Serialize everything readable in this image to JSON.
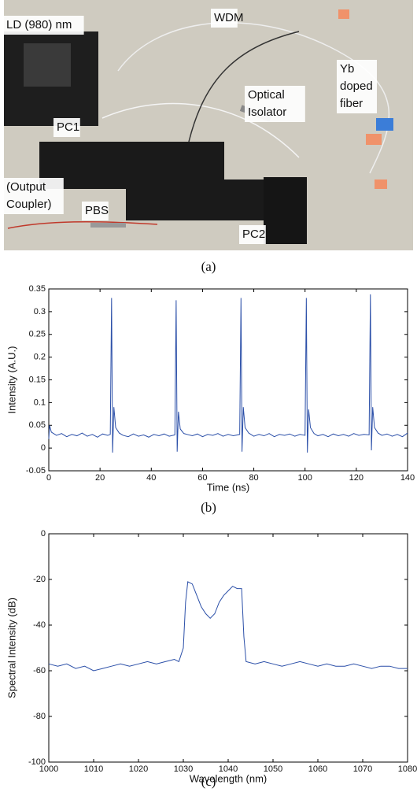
{
  "photo": {
    "labels": [
      {
        "lines": [
          "LD (980) nm"
        ]
      },
      {
        "lines": [
          "WDM"
        ]
      },
      {
        "lines": [
          "Yb",
          "doped",
          "fiber"
        ]
      },
      {
        "lines": [
          "Optical",
          "Isolator"
        ]
      },
      {
        "lines": [
          "PC1"
        ]
      },
      {
        "lines": [
          "(Output",
          "Coupler)"
        ]
      },
      {
        "lines": [
          "PBS"
        ]
      },
      {
        "lines": [
          "PC2"
        ]
      }
    ]
  },
  "captions": [
    "(a)",
    "(b)",
    "(c)"
  ],
  "chart_data": [
    {
      "type": "line",
      "xlabel": "Time (ns)",
      "ylabel": "Intensity (A.U.)",
      "color": "#2b4fa8",
      "xlim": [
        0,
        140
      ],
      "xticks": [
        0,
        20,
        40,
        60,
        80,
        100,
        120,
        140
      ],
      "ylim": [
        -0.05,
        0.35
      ],
      "yticks": [
        -0.05,
        0,
        0.05,
        0.1,
        0.15,
        0.2,
        0.25,
        0.3,
        0.35
      ],
      "x": [
        0,
        0.3,
        1,
        3,
        5,
        7,
        9,
        11,
        13,
        15,
        17,
        19,
        21,
        23,
        24,
        24.5,
        24.9,
        25.4,
        26.1,
        27.5,
        29,
        31,
        33,
        35,
        37,
        39,
        41,
        43,
        45,
        47,
        49.2,
        49.7,
        50.1,
        50.6,
        51.3,
        52.7,
        54,
        56,
        58,
        60,
        62,
        64,
        66,
        68,
        70,
        72,
        74.5,
        75,
        75.4,
        75.9,
        76.6,
        78,
        80,
        82,
        84,
        86,
        88,
        90,
        92,
        94,
        96,
        98,
        100,
        100.5,
        100.9,
        101.4,
        102.1,
        103.5,
        105,
        107,
        109,
        111,
        113,
        115,
        117,
        119,
        121,
        123,
        125,
        125.5,
        125.9,
        126.4,
        127.1,
        128.5,
        130,
        132,
        134,
        136,
        138,
        140
      ],
      "values": [
        0.02,
        0.05,
        0.035,
        0.028,
        0.032,
        0.025,
        0.03,
        0.027,
        0.033,
        0.026,
        0.03,
        0.024,
        0.031,
        0.028,
        0.03,
        0.33,
        -0.01,
        0.09,
        0.045,
        0.033,
        0.028,
        0.025,
        0.031,
        0.026,
        0.029,
        0.024,
        0.03,
        0.027,
        0.031,
        0.026,
        0.029,
        0.325,
        -0.008,
        0.08,
        0.042,
        0.032,
        0.03,
        0.027,
        0.031,
        0.025,
        0.03,
        0.028,
        0.032,
        0.026,
        0.03,
        0.027,
        0.03,
        0.33,
        -0.008,
        0.09,
        0.045,
        0.033,
        0.026,
        0.03,
        0.027,
        0.032,
        0.025,
        0.03,
        0.028,
        0.031,
        0.026,
        0.03,
        0.028,
        0.33,
        -0.01,
        0.085,
        0.045,
        0.032,
        0.027,
        0.03,
        0.025,
        0.031,
        0.027,
        0.03,
        0.026,
        0.032,
        0.028,
        0.03,
        0.029,
        0.338,
        -0.005,
        0.09,
        0.045,
        0.033,
        0.028,
        0.031,
        0.026,
        0.03,
        0.025,
        0.033
      ]
    },
    {
      "type": "line",
      "xlabel": "Wavelength (nm)",
      "ylabel": "Spectral Intensity (dB)",
      "color": "#2b4fa8",
      "xlim": [
        1000,
        1080
      ],
      "xticks": [
        1000,
        1010,
        1020,
        1030,
        1040,
        1050,
        1060,
        1070,
        1080
      ],
      "ylim": [
        -100,
        0
      ],
      "yticks": [
        -100,
        -80,
        -60,
        -40,
        -20,
        0
      ],
      "x": [
        1000,
        1002,
        1004,
        1006,
        1008,
        1010,
        1012,
        1014,
        1016,
        1018,
        1020,
        1022,
        1024,
        1026,
        1028,
        1029,
        1030,
        1030.5,
        1031,
        1032,
        1033,
        1034,
        1035,
        1036,
        1037,
        1038,
        1039,
        1040,
        1041,
        1042,
        1043,
        1043.5,
        1044,
        1046,
        1048,
        1050,
        1052,
        1054,
        1056,
        1058,
        1060,
        1062,
        1064,
        1066,
        1068,
        1070,
        1072,
        1074,
        1076,
        1078,
        1080
      ],
      "values": [
        -57,
        -58,
        -57,
        -59,
        -58,
        -60,
        -59,
        -58,
        -57,
        -58,
        -57,
        -56,
        -57,
        -56,
        -55,
        -56,
        -50,
        -30,
        -21,
        -22,
        -27,
        -32,
        -35,
        -37,
        -35,
        -30,
        -27,
        -25,
        -23,
        -24,
        -24,
        -45,
        -56,
        -57,
        -56,
        -57,
        -58,
        -57,
        -56,
        -57,
        -58,
        -57,
        -58,
        -58,
        -57,
        -58,
        -59,
        -58,
        -58,
        -59,
        -59
      ]
    }
  ]
}
